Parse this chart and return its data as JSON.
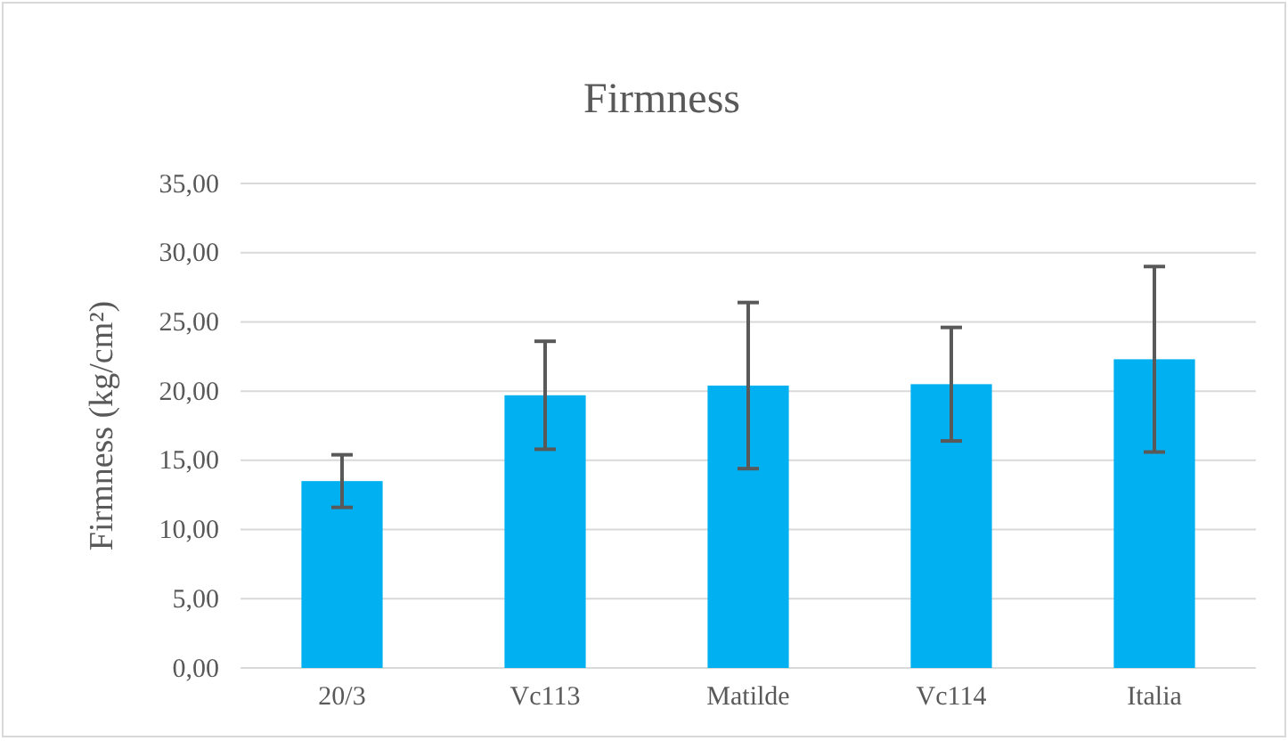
{
  "chart_data": {
    "type": "bar",
    "title": "Firmness",
    "ylabel": "Firmness (kg/cm²)",
    "categories": [
      "20/3",
      "Vc113",
      "Matilde",
      "Vc114",
      "Italia"
    ],
    "series": [
      {
        "color": "#00b0f0",
        "values": [
          13.5,
          19.7,
          20.4,
          20.5,
          22.3
        ],
        "errors": [
          1.9,
          3.9,
          6.0,
          4.1,
          6.7
        ]
      }
    ],
    "ylim": [
      0,
      35
    ],
    "yticks": [
      {
        "value": 0,
        "label": "0,00"
      },
      {
        "value": 5,
        "label": "5,00"
      },
      {
        "value": 10,
        "label": "10,00"
      },
      {
        "value": 15,
        "label": "15,00"
      },
      {
        "value": 20,
        "label": "20,00"
      },
      {
        "value": 25,
        "label": "25,00"
      },
      {
        "value": 30,
        "label": "30,00"
      },
      {
        "value": 35,
        "label": "35,00"
      }
    ],
    "grid": "y"
  }
}
